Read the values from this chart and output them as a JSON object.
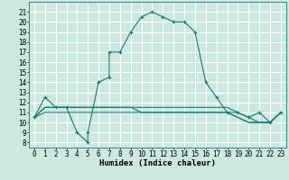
{
  "xlabel": "Humidex (Indice chaleur)",
  "ylabel": "",
  "bg_color": "#cce8e0",
  "grid_color": "#ffffff",
  "line_color": "#1a7a6e",
  "xlim": [
    -0.5,
    23.5
  ],
  "ylim": [
    7.5,
    22
  ],
  "xticks": [
    0,
    1,
    2,
    3,
    4,
    5,
    6,
    7,
    8,
    9,
    10,
    11,
    12,
    13,
    14,
    15,
    16,
    17,
    18,
    19,
    20,
    21,
    22,
    23
  ],
  "yticks": [
    8,
    9,
    10,
    11,
    12,
    13,
    14,
    15,
    16,
    17,
    18,
    19,
    20,
    21
  ],
  "curve1_x": [
    0,
    1,
    2,
    3,
    4,
    5,
    5,
    6,
    7,
    7,
    8,
    9,
    10,
    11,
    12,
    13,
    14,
    15,
    16,
    17,
    18,
    19,
    20,
    21,
    22,
    23
  ],
  "curve1_y": [
    10.5,
    12.5,
    11.5,
    11.5,
    9.0,
    8.0,
    9.0,
    14.0,
    14.5,
    17.0,
    17.0,
    19.0,
    20.5,
    21.0,
    20.5,
    20.0,
    20.0,
    19.0,
    14.0,
    12.5,
    11.0,
    11.0,
    10.5,
    11.0,
    10.0,
    11.0
  ],
  "curve2_x": [
    0,
    1,
    2,
    3,
    4,
    5,
    6,
    7,
    8,
    9,
    10,
    11,
    12,
    13,
    14,
    15,
    16,
    17,
    18,
    19,
    20,
    21,
    22,
    23
  ],
  "curve2_y": [
    10.5,
    11.5,
    11.5,
    11.5,
    11.5,
    11.5,
    11.5,
    11.5,
    11.5,
    11.5,
    11.5,
    11.5,
    11.5,
    11.5,
    11.5,
    11.5,
    11.5,
    11.5,
    11.5,
    11.0,
    10.5,
    10.0,
    10.0,
    11.0
  ],
  "curve3_x": [
    0,
    1,
    2,
    3,
    4,
    5,
    6,
    7,
    8,
    9,
    10,
    11,
    12,
    13,
    14,
    15,
    16,
    17,
    18,
    19,
    20,
    21,
    22,
    23
  ],
  "curve3_y": [
    10.5,
    11.5,
    11.5,
    11.5,
    11.5,
    11.5,
    11.5,
    11.5,
    11.5,
    11.5,
    11.0,
    11.0,
    11.0,
    11.0,
    11.0,
    11.0,
    11.0,
    11.0,
    11.0,
    10.5,
    10.0,
    10.0,
    10.0,
    11.0
  ],
  "curve4_x": [
    0,
    1,
    2,
    3,
    4,
    5,
    6,
    7,
    8,
    9,
    10,
    11,
    12,
    13,
    14,
    15,
    16,
    17,
    18,
    19,
    20,
    21,
    22,
    23
  ],
  "curve4_y": [
    10.5,
    11.0,
    11.0,
    11.0,
    11.0,
    11.0,
    11.0,
    11.0,
    11.0,
    11.0,
    11.0,
    11.0,
    11.0,
    11.0,
    11.0,
    11.0,
    11.0,
    11.0,
    11.0,
    10.5,
    10.0,
    10.0,
    10.0,
    11.0
  ],
  "xlabel_fontsize": 6.5,
  "tick_fontsize": 5.5
}
